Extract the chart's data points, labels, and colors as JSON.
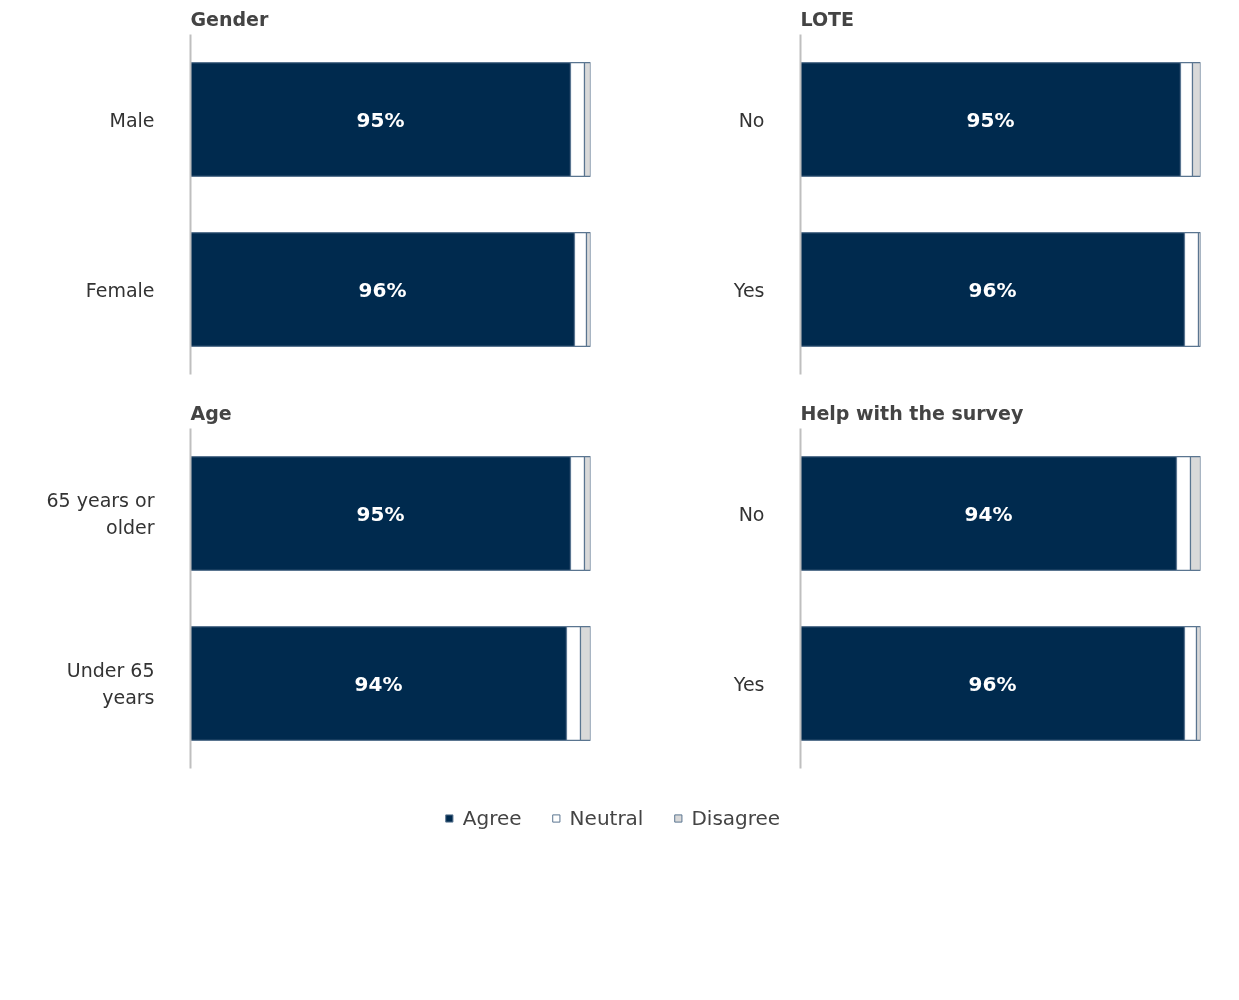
{
  "chart_data": [
    {
      "type": "bar",
      "orientation": "horizontal",
      "stacked": true,
      "title": "Gender",
      "categories": [
        "Male",
        "Female"
      ],
      "xlim": [
        0,
        100
      ],
      "tick_labels": "y",
      "grid": false,
      "series": [
        {
          "color": "#002a4e",
          "values": [
            95,
            96
          ],
          "value_labels": [
            "95%",
            "96%"
          ]
        },
        {
          "color": "#ffffff",
          "values": [
            3.5,
            3
          ]
        },
        {
          "color": "#d9d9d9",
          "values": [
            1.5,
            1
          ]
        }
      ]
    },
    {
      "type": "bar",
      "orientation": "horizontal",
      "stacked": true,
      "title": "LOTE",
      "categories": [
        "No",
        "Yes"
      ],
      "xlim": [
        0,
        100
      ],
      "tick_labels": "y",
      "grid": false,
      "series": [
        {
          "color": "#002a4e",
          "values": [
            95,
            96
          ],
          "value_labels": [
            "95%",
            "96%"
          ]
        },
        {
          "color": "#ffffff",
          "values": [
            3,
            3.5
          ]
        },
        {
          "color": "#d9d9d9",
          "values": [
            2,
            0.5
          ]
        }
      ]
    },
    {
      "type": "bar",
      "orientation": "horizontal",
      "stacked": true,
      "title": "Age",
      "categories": [
        "65 years or older",
        "Under 65 years"
      ],
      "xlim": [
        0,
        100
      ],
      "tick_labels": "y",
      "grid": false,
      "series": [
        {
          "color": "#002a4e",
          "values": [
            95,
            94
          ],
          "value_labels": [
            "95%",
            "94%"
          ]
        },
        {
          "color": "#ffffff",
          "values": [
            3.5,
            3.5
          ]
        },
        {
          "color": "#d9d9d9",
          "values": [
            1.5,
            2.5
          ]
        }
      ]
    },
    {
      "type": "bar",
      "orientation": "horizontal",
      "stacked": true,
      "title": "Help with the survey",
      "categories": [
        "No",
        "Yes"
      ],
      "xlim": [
        0,
        100
      ],
      "tick_labels": "y",
      "grid": false,
      "legend": "bottom",
      "series": [
        {
          "name": "Agree",
          "color": "#002a4e",
          "values": [
            94,
            96
          ],
          "value_labels": [
            "94%",
            "96%"
          ]
        },
        {
          "name": "Neutral",
          "color": "#ffffff",
          "values": [
            3.5,
            3
          ]
        },
        {
          "name": "Disagree",
          "color": "#d9d9d9",
          "values": [
            2.5,
            1
          ]
        }
      ]
    }
  ]
}
